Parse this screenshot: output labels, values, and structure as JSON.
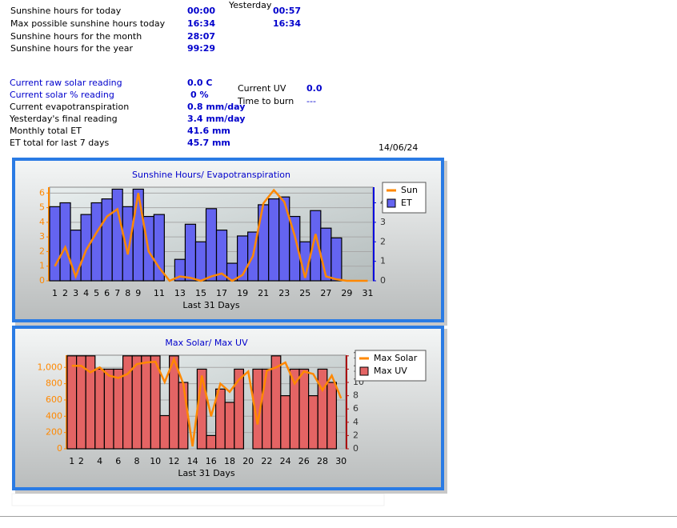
{
  "panel": {
    "sunshine": [
      {
        "label": "Sunshine hours for today",
        "value": "00:00"
      },
      {
        "label": "Max possible sunshine hours today",
        "value": "16:34"
      },
      {
        "label": "Sunshine hours for the month",
        "value": "28:07"
      },
      {
        "label": "Sunshine hours for the year",
        "value": "99:29"
      }
    ],
    "yesterday": {
      "title": "Yesterday",
      "values": [
        "00:57",
        "16:34"
      ]
    },
    "readings": [
      {
        "label": "Current raw solar reading",
        "value": "0.0 C"
      },
      {
        "label": "Current solar % reading",
        "value": "0 %"
      },
      {
        "label": "Current evapotranspiration",
        "value": "0.8 mm/day"
      },
      {
        "label": "Yesterday's final reading",
        "value": "3.4 mm/day"
      },
      {
        "label": "Monthly total ET",
        "value": "41.6 mm"
      },
      {
        "label": "ET total for last 7 days",
        "value": "45.7 mm"
      }
    ],
    "uv": [
      {
        "label": "Current UV",
        "value": "0.0"
      },
      {
        "label": "Time to burn",
        "value": "---"
      }
    ],
    "date": "14/06/24"
  },
  "chart_data": [
    {
      "type": "combo",
      "title": "Sunshine Hours/ Evapotranspiration",
      "x_label": "Last 31 Days",
      "categories": [
        "1",
        "2",
        "3",
        "4",
        "5",
        "6",
        "7",
        "8",
        "9",
        null,
        "11",
        null,
        "13",
        null,
        "15",
        null,
        "17",
        null,
        "19",
        null,
        "21",
        null,
        "23",
        null,
        "25",
        null,
        "27",
        null,
        "29",
        null,
        "31"
      ],
      "ylim": [
        0,
        6.4
      ],
      "yticks": [
        0,
        1,
        2,
        3,
        4,
        5,
        6
      ],
      "y2lim": [
        0,
        4.8
      ],
      "y2ticks": [
        0,
        1,
        2,
        3,
        4
      ],
      "grid": true,
      "legend": "top-right",
      "series": [
        {
          "name": "Sun",
          "type": "line",
          "color": "#ff8800",
          "values": [
            1.0,
            2.3,
            0.3,
            2.1,
            3.3,
            4.4,
            4.9,
            1.8,
            6.0,
            2.0,
            0.9,
            0,
            0.3,
            0.2,
            0,
            0.3,
            0.5,
            0,
            0.4,
            1.7,
            5.3,
            6.2,
            5.4,
            3.1,
            0.2,
            3.2,
            0.3,
            0.1,
            0,
            0,
            0
          ]
        },
        {
          "name": "ET",
          "type": "bar",
          "axis": "y2",
          "color": "#6464f0",
          "values": [
            3.8,
            4.0,
            2.6,
            3.4,
            4.0,
            4.2,
            4.7,
            3.8,
            4.7,
            3.3,
            3.4,
            0,
            1.1,
            2.9,
            2.0,
            3.7,
            2.6,
            0.9,
            2.3,
            2.5,
            3.9,
            4.2,
            4.3,
            3.3,
            2.0,
            3.6,
            2.7,
            2.2,
            0,
            0,
            0
          ]
        }
      ]
    },
    {
      "type": "combo",
      "title": "Max Solar/ Max UV",
      "x_label": "Last 31 Days",
      "categories": [
        "1",
        "2",
        null,
        "4",
        null,
        "6",
        null,
        "8",
        null,
        "10",
        null,
        "12",
        null,
        "14",
        null,
        "16",
        null,
        "18",
        null,
        "20",
        null,
        "22",
        null,
        "24",
        null,
        "26",
        null,
        "28",
        null,
        "30"
      ],
      "ylim": [
        0,
        1150
      ],
      "yticks": [
        0,
        200,
        400,
        600,
        800,
        {
          "value": 1000,
          "label": "1,000"
        }
      ],
      "y2lim": [
        0,
        14.1
      ],
      "y2ticks": [
        0,
        2,
        4,
        6,
        8,
        10,
        {
          "value": 12,
          "label": "1"
        },
        {
          "value": 14,
          "label": "1"
        }
      ],
      "grid": true,
      "legend": "top-right",
      "series": [
        {
          "name": "Max Solar",
          "type": "line",
          "color": "#ff8800",
          "values": [
            1020,
            1020,
            940,
            1000,
            900,
            870,
            920,
            1040,
            1060,
            1070,
            820,
            1100,
            800,
            30,
            900,
            400,
            800,
            700,
            850,
            950,
            300,
            960,
            1000,
            1060,
            800,
            950,
            920,
            720,
            900,
            620
          ]
        },
        {
          "name": "Max UV",
          "type": "bar",
          "axis": "y2",
          "color": "#e46464",
          "values": [
            14,
            14,
            14,
            12,
            12,
            12,
            14,
            14,
            14,
            14,
            5,
            14,
            10,
            0,
            12,
            2,
            9,
            7,
            12,
            0,
            12,
            12,
            14,
            8,
            12,
            12,
            8,
            12,
            10,
            0
          ]
        }
      ]
    }
  ]
}
